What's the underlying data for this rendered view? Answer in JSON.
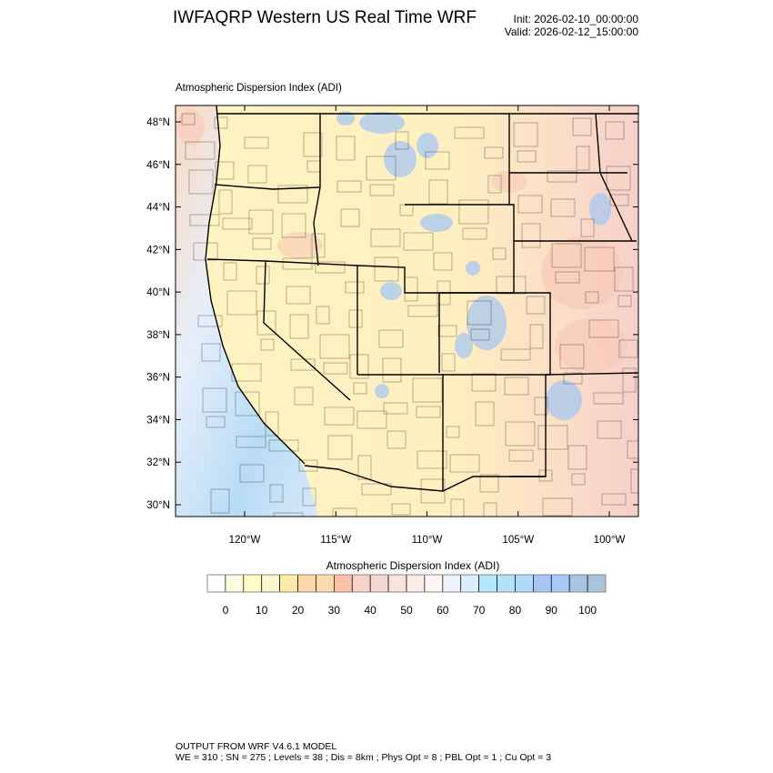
{
  "header": {
    "title": "IWFAQRP Western US Real Time WRF",
    "init": "Init: 2026-02-10_00:00:00",
    "valid": "Valid: 2026-02-12_15:00:00"
  },
  "map": {
    "field_label": "Atmospheric Dispersion Index   (ADI)",
    "lat_ticks": [
      "48°N",
      "46°N",
      "44°N",
      "42°N",
      "40°N",
      "38°N",
      "36°N",
      "34°N",
      "32°N",
      "30°N"
    ],
    "lon_ticks": [
      "120°W",
      "115°W",
      "110°W",
      "105°W",
      "100°W"
    ],
    "lat_values": [
      48,
      46,
      44,
      42,
      40,
      38,
      36,
      34,
      32,
      30
    ],
    "lon_values": [
      -120,
      -115,
      -110,
      -105,
      -100
    ]
  },
  "colorbar": {
    "title": "Atmospheric Dispersion Index  (ADI)",
    "labels": [
      "0",
      "10",
      "20",
      "30",
      "40",
      "50",
      "60",
      "70",
      "80",
      "90",
      "100"
    ],
    "colors": [
      "#ffffff",
      "#fffde0",
      "#ffffc4",
      "#fbf7cc",
      "#ffeaa8",
      "#fed8aa",
      "#fddcac",
      "#fcc0a8",
      "#f6d2c8",
      "#f5d8d0",
      "#f8e4da",
      "#fcece8",
      "#fff5f5",
      "#eef2fc",
      "#dceefc",
      "#b4e6fc",
      "#b0e2fa",
      "#aedcf8",
      "#a6c4f4",
      "#a8c8f8",
      "#a8c4e4",
      "#a8c4dc"
    ]
  },
  "footer": {
    "line1": "OUTPUT FROM WRF V4.6.1 MODEL",
    "line2": "WE = 310 ; SN = 275 ; Levels = 38 ; Dis = 8km ; Phys Opt = 8 ; PBL Opt = 1 ; Cu Opt = 3"
  }
}
